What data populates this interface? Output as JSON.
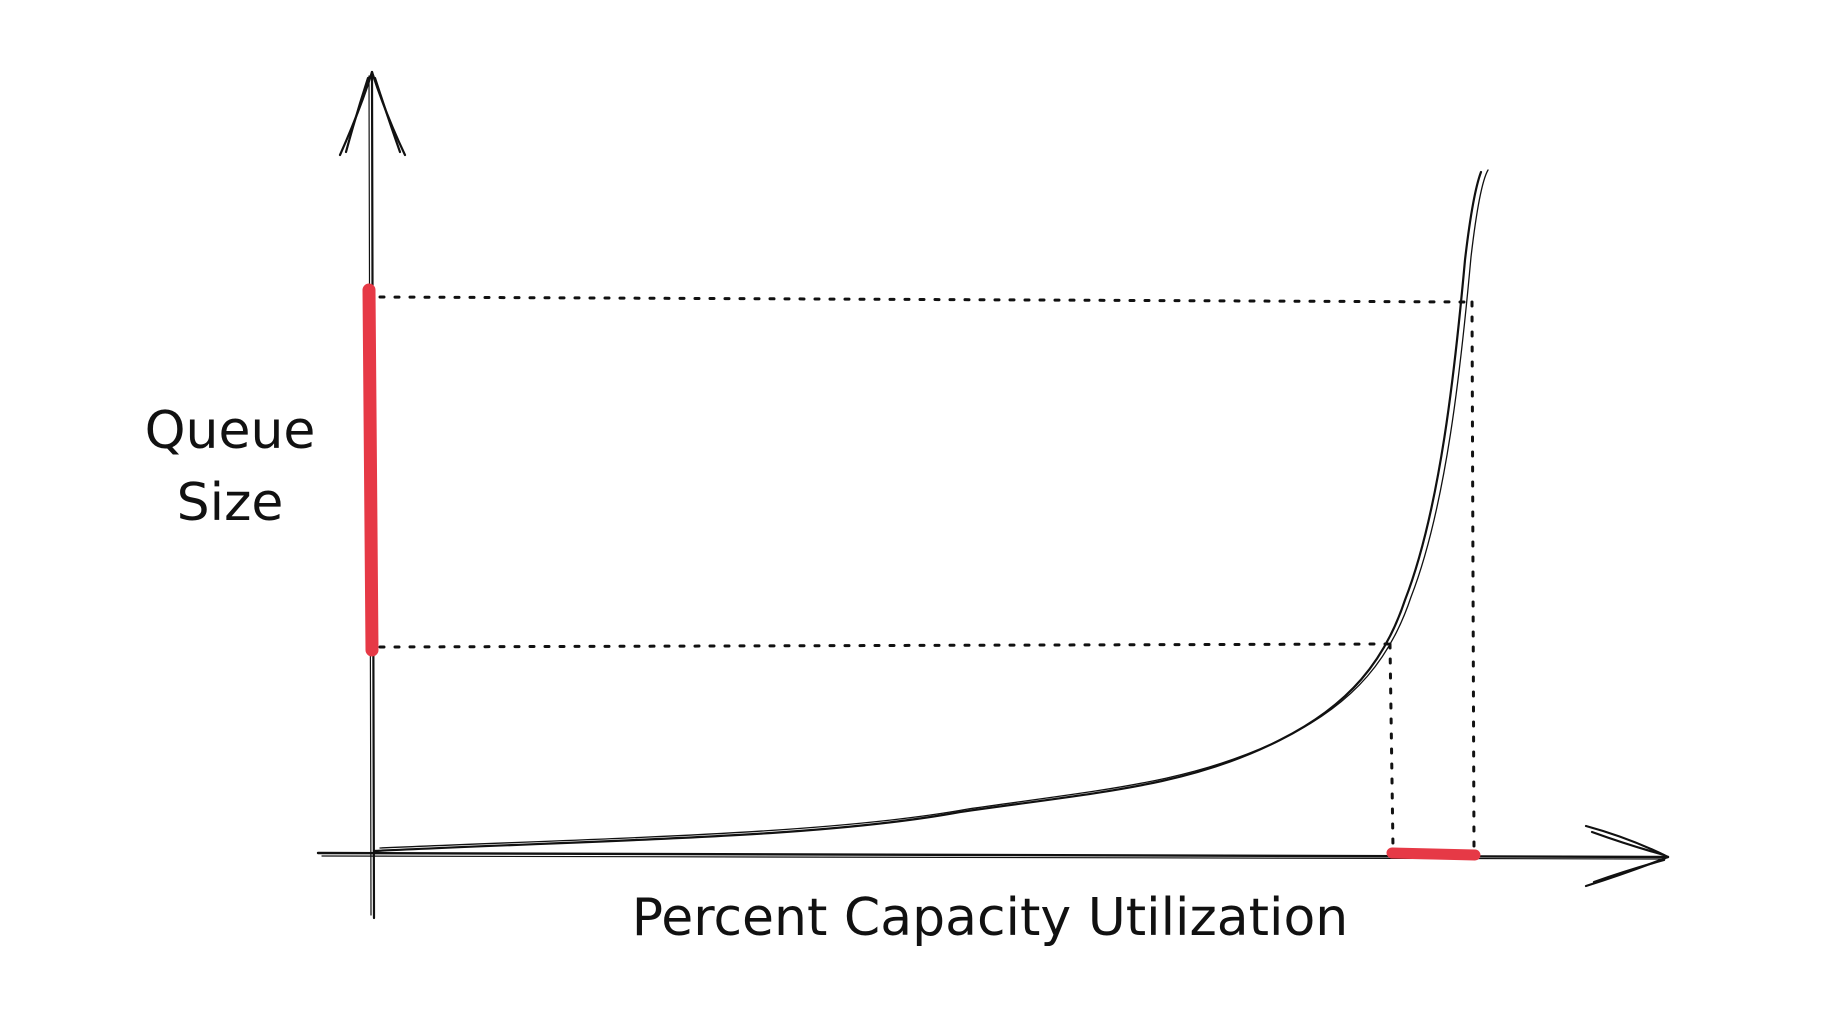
{
  "diagram": {
    "y_axis_label": [
      "Queue",
      "Size"
    ],
    "x_axis_label": "Percent Capacity Utilization",
    "colors": {
      "ink": "#111111",
      "highlight": "#e63946",
      "background": "#ffffff"
    }
  }
}
